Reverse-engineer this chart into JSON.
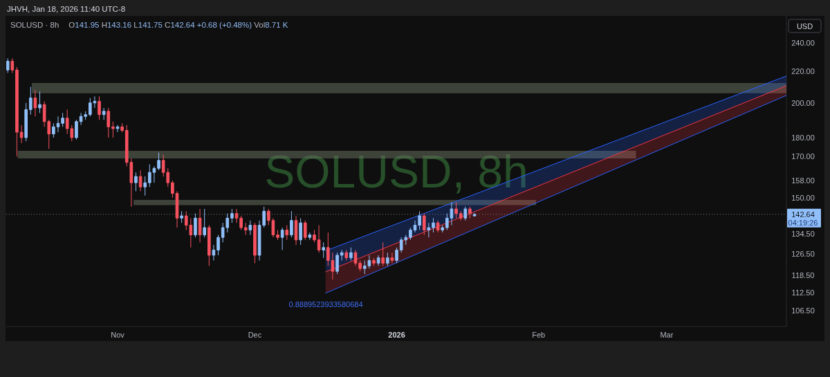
{
  "chart_data": {
    "type": "candlestick",
    "title": "SOLUSD · 8h",
    "subtitle": "O141.95 H143.16 L141.75 C142.64 +0.68 (+0.48%) Vol8.71 K",
    "ylabel": "USD",
    "annotations": [
      "JHVH, Jan 18, 2026 11:40 UTC-8",
      "SOLUSD, 8h",
      "0.8889523933580684",
      "04:19:26"
    ],
    "x": [
      "2025-10-08",
      "2025-10-09",
      "2025-10-10",
      "2025-10-11",
      "2025-10-12",
      "2025-10-13",
      "2025-10-14",
      "2025-10-15",
      "2025-10-16",
      "2025-10-17",
      "2025-10-18",
      "2025-10-19",
      "2025-10-20",
      "2025-10-21",
      "2025-10-22",
      "2025-10-23",
      "2025-10-24",
      "2025-10-25",
      "2025-10-26",
      "2025-10-27",
      "2025-10-28",
      "2025-10-29",
      "2025-10-30",
      "2025-10-31",
      "2025-11-01",
      "2025-11-02",
      "2025-11-03",
      "2025-11-04",
      "2025-11-05",
      "2025-11-06",
      "2025-11-07",
      "2025-11-08",
      "2025-11-09",
      "2025-11-10",
      "2025-11-11",
      "2025-11-12",
      "2025-11-13",
      "2025-11-14",
      "2025-11-15",
      "2025-11-16",
      "2025-11-17",
      "2025-11-18",
      "2025-11-19",
      "2025-11-20",
      "2025-11-21",
      "2025-11-22",
      "2025-11-23",
      "2025-11-24",
      "2025-11-25",
      "2025-11-26",
      "2025-11-27",
      "2025-11-28",
      "2025-11-29",
      "2025-11-30",
      "2025-12-01",
      "2025-12-02",
      "2025-12-03",
      "2025-12-04",
      "2025-12-05",
      "2025-12-06",
      "2025-12-07",
      "2025-12-08",
      "2025-12-09",
      "2025-12-10",
      "2025-12-11",
      "2025-12-12",
      "2025-12-13",
      "2025-12-14",
      "2025-12-15",
      "2025-12-16",
      "2025-12-17",
      "2025-12-18",
      "2025-12-19",
      "2025-12-20",
      "2025-12-21",
      "2025-12-22",
      "2025-12-23",
      "2025-12-24",
      "2025-12-25",
      "2025-12-26",
      "2025-12-27",
      "2025-12-28",
      "2025-12-29",
      "2025-12-30",
      "2025-12-31",
      "2026-01-01",
      "2026-01-02",
      "2026-01-03",
      "2026-01-04",
      "2026-01-05",
      "2026-01-06",
      "2026-01-07",
      "2026-01-08",
      "2026-01-09",
      "2026-01-10",
      "2026-01-11",
      "2026-01-12",
      "2026-01-13",
      "2026-01-14",
      "2026-01-15",
      "2026-01-16",
      "2026-01-17",
      "2026-01-18"
    ],
    "ohlc": [
      [
        221,
        229,
        219,
        227
      ],
      [
        227,
        229,
        219,
        221
      ],
      [
        221,
        223,
        170,
        183
      ],
      [
        183,
        187,
        177,
        180
      ],
      [
        180,
        200,
        178,
        196
      ],
      [
        196,
        210,
        193,
        203
      ],
      [
        203,
        208,
        192,
        197
      ],
      [
        197,
        207,
        194,
        199
      ],
      [
        199,
        201,
        186,
        189
      ],
      [
        189,
        190,
        174,
        182
      ],
      [
        182,
        188,
        180,
        186
      ],
      [
        186,
        192,
        183,
        188
      ],
      [
        188,
        194,
        186,
        191
      ],
      [
        191,
        196,
        182,
        185
      ],
      [
        185,
        187,
        178,
        180
      ],
      [
        180,
        190,
        179,
        189
      ],
      [
        189,
        194,
        187,
        192
      ],
      [
        192,
        195,
        190,
        193
      ],
      [
        193,
        203,
        192,
        200
      ],
      [
        200,
        204,
        197,
        201
      ],
      [
        201,
        204,
        190,
        193
      ],
      [
        193,
        197,
        190,
        195
      ],
      [
        195,
        197,
        180,
        186
      ],
      [
        186,
        189,
        180,
        185
      ],
      [
        185,
        187,
        183,
        186
      ],
      [
        186,
        188,
        183,
        184
      ],
      [
        184,
        187,
        165,
        167
      ],
      [
        167,
        169,
        146,
        157
      ],
      [
        157,
        162,
        153,
        160
      ],
      [
        160,
        163,
        153,
        155
      ],
      [
        155,
        160,
        151,
        157
      ],
      [
        157,
        166,
        155,
        162
      ],
      [
        162,
        165,
        157,
        164
      ],
      [
        164,
        172,
        163,
        168
      ],
      [
        168,
        171,
        160,
        162
      ],
      [
        162,
        164,
        155,
        157
      ],
      [
        157,
        158,
        150,
        152
      ],
      [
        152,
        153,
        137,
        141
      ],
      [
        141,
        144,
        139,
        142
      ],
      [
        142,
        144,
        136,
        138
      ],
      [
        138,
        141,
        129,
        134
      ],
      [
        134,
        143,
        133,
        141
      ],
      [
        141,
        145,
        131,
        134
      ],
      [
        134,
        145,
        133,
        137
      ],
      [
        137,
        138,
        122,
        126
      ],
      [
        126,
        130,
        124,
        128
      ],
      [
        128,
        134,
        126,
        133
      ],
      [
        133,
        139,
        131,
        137
      ],
      [
        137,
        143,
        135,
        141
      ],
      [
        141,
        145,
        139,
        143
      ],
      [
        143,
        145,
        139,
        141
      ],
      [
        141,
        142,
        136,
        137
      ],
      [
        137,
        139,
        134,
        136
      ],
      [
        136,
        140,
        134,
        138
      ],
      [
        138,
        139,
        123,
        126
      ],
      [
        126,
        140,
        124,
        138
      ],
      [
        138,
        146,
        137,
        144
      ],
      [
        144,
        145,
        138,
        140
      ],
      [
        140,
        141,
        133,
        134
      ],
      [
        134,
        136,
        132,
        133
      ],
      [
        133,
        137,
        128,
        136
      ],
      [
        136,
        138,
        132,
        134
      ],
      [
        134,
        144,
        133,
        140
      ],
      [
        140,
        142,
        130,
        132
      ],
      [
        132,
        141,
        130,
        139
      ],
      [
        139,
        140,
        132,
        133
      ],
      [
        133,
        135,
        132,
        134
      ],
      [
        134,
        136,
        131,
        132
      ],
      [
        132,
        138,
        127,
        128
      ],
      [
        128,
        131,
        125,
        129
      ],
      [
        129,
        135,
        122,
        124
      ],
      [
        124,
        127,
        117,
        120
      ],
      [
        120,
        127,
        119,
        126
      ],
      [
        126,
        128,
        124,
        127
      ],
      [
        127,
        128,
        124,
        125
      ],
      [
        125,
        129,
        124,
        127
      ],
      [
        127,
        128,
        122,
        123
      ],
      [
        123,
        124,
        120,
        121
      ],
      [
        121,
        124,
        119,
        122
      ],
      [
        122,
        126,
        121,
        124
      ],
      [
        124,
        125,
        122,
        123
      ],
      [
        123,
        126,
        122,
        125
      ],
      [
        125,
        131,
        122,
        123
      ],
      [
        123,
        127,
        122,
        125
      ],
      [
        125,
        127,
        123,
        124
      ],
      [
        124,
        129,
        123,
        128
      ],
      [
        128,
        133,
        127,
        132
      ],
      [
        132,
        134,
        130,
        133
      ],
      [
        133,
        137,
        132,
        136
      ],
      [
        136,
        140,
        135,
        138
      ],
      [
        138,
        144,
        136,
        142
      ],
      [
        142,
        143,
        134,
        136
      ],
      [
        136,
        139,
        133,
        137
      ],
      [
        137,
        141,
        135,
        139
      ],
      [
        139,
        140,
        135,
        136
      ],
      [
        136,
        138,
        135,
        137
      ],
      [
        137,
        143,
        136,
        141
      ],
      [
        141,
        148,
        138,
        145
      ],
      [
        145,
        148,
        141,
        143
      ],
      [
        143,
        144,
        140,
        141
      ],
      [
        141,
        146,
        140,
        145
      ],
      [
        145,
        146,
        141,
        143
      ],
      [
        141.95,
        143.16,
        141.75,
        142.64
      ]
    ],
    "colors": [
      "#90bff9",
      "#f7525f",
      "#f7525f",
      "#f7525f",
      "#90bff9",
      "#90bff9",
      "#f7525f",
      "#90bff9",
      "#f7525f",
      "#f7525f",
      "#90bff9",
      "#90bff9",
      "#90bff9",
      "#f7525f",
      "#f7525f",
      "#90bff9",
      "#90bff9",
      "#90bff9",
      "#90bff9",
      "#90bff9",
      "#f7525f",
      "#90bff9",
      "#f7525f",
      "#f7525f",
      "#90bff9",
      "#f7525f",
      "#f7525f",
      "#f7525f",
      "#90bff9",
      "#f7525f",
      "#90bff9",
      "#90bff9",
      "#90bff9",
      "#90bff9",
      "#f7525f",
      "#f7525f",
      "#f7525f",
      "#f7525f",
      "#90bff9",
      "#f7525f",
      "#f7525f",
      "#90bff9",
      "#f7525f",
      "#90bff9",
      "#f7525f",
      "#90bff9",
      "#90bff9",
      "#90bff9",
      "#90bff9",
      "#90bff9",
      "#f7525f",
      "#f7525f",
      "#f7525f",
      "#90bff9",
      "#f7525f",
      "#90bff9",
      "#90bff9",
      "#f7525f",
      "#f7525f",
      "#f7525f",
      "#90bff9",
      "#f7525f",
      "#90bff9",
      "#f7525f",
      "#90bff9",
      "#f7525f",
      "#90bff9",
      "#f7525f",
      "#f7525f",
      "#90bff9",
      "#f7525f",
      "#f7525f",
      "#90bff9",
      "#90bff9",
      "#f7525f",
      "#90bff9",
      "#f7525f",
      "#f7525f",
      "#90bff9",
      "#90bff9",
      "#f7525f",
      "#90bff9",
      "#f7525f",
      "#90bff9",
      "#f7525f",
      "#90bff9",
      "#90bff9",
      "#90bff9",
      "#90bff9",
      "#90bff9",
      "#90bff9",
      "#f7525f",
      "#90bff9",
      "#90bff9",
      "#f7525f",
      "#90bff9",
      "#90bff9",
      "#90bff9",
      "#f7525f",
      "#f7525f",
      "#90bff9",
      "#f7525f",
      "#90bff9"
    ],
    "series": [
      {
        "type": "line",
        "x": [
          "2025-10-13T06:00",
          "2026-03-27T04:00"
        ],
        "values": [
          null,
          null
        ],
        "lower": [
          206,
          206
        ],
        "upper": [
          212.5,
          212.5
        ],
        "color": "#66705f"
      },
      {
        "type": "line",
        "x": [
          "2025-10-10T05:00",
          "2026-02-22T07:00"
        ],
        "values": [
          null,
          null
        ],
        "lower": [
          169,
          169
        ],
        "upper": [
          173,
          173
        ],
        "color": "#66705f"
      },
      {
        "type": "line",
        "x": [
          "2025-11-04T12:00",
          "2026-01-31T11:00"
        ],
        "values": [
          null,
          null
        ],
        "lower": [
          146.7,
          146.7
        ],
        "upper": [
          149,
          149
        ],
        "color": "#66705f"
      },
      {
        "type": "line",
        "x": [
          "2025-12-16T11:00",
          "2026-03-27T04:00"
        ],
        "values": [
          127.7,
          217
        ],
        "lower": [
          119.8,
          210.7
        ],
        "upper": [
          127.7,
          217
        ],
        "color": "#2962ff"
      },
      {
        "type": "line",
        "x": [
          "2025-12-16T11:00",
          "2026-03-27T04:00"
        ],
        "values": [
          119.8,
          210.7
        ],
        "lower": [
          112.3,
          204.6
        ],
        "upper": [
          119.8,
          210.7
        ],
        "color": "#f23645"
      },
      {
        "type": "line",
        "x": [
          "2025-12-16T11:00",
          "2026-03-27T04:00"
        ],
        "values": [
          112.3,
          204.6
        ],
        "color": "#2962ff"
      }
    ],
    "xlim": [
      "2025-10-07T16:00",
      "2026-03-27T04:00"
    ],
    "xticks": [
      {
        "value": "2025-11-01",
        "label": "Nov"
      },
      {
        "value": "2025-12-01",
        "label": "Dec"
      },
      {
        "value": "2026-01-01",
        "label": "2026"
      },
      {
        "value": "2026-02-01",
        "label": "Feb"
      },
      {
        "value": "2026-03-01",
        "label": "Mar"
      }
    ],
    "ylim": [
      101.5,
      260.4
    ],
    "yticks": [
      {
        "value": 106.5,
        "label": "106.50"
      },
      {
        "value": 112.5,
        "label": "112.50"
      },
      {
        "value": 118.5,
        "label": "118.50"
      },
      {
        "value": 126.5,
        "label": "126.50"
      },
      {
        "value": 134.5,
        "label": "134.50"
      },
      {
        "value": 150,
        "label": "150.00"
      },
      {
        "value": 158,
        "label": "158.00"
      },
      {
        "value": 170,
        "label": "170.00"
      },
      {
        "value": 180,
        "label": "180.00"
      },
      {
        "value": 200,
        "label": "200.00"
      },
      {
        "value": 220,
        "label": "220.00"
      },
      {
        "value": 240,
        "label": "240.00"
      }
    ],
    "log": "y",
    "ref_lines": [
      {
        "axis": "y",
        "value": 142.64,
        "label": "142.64",
        "color": "#787b86",
        "line_style": "dotted"
      }
    ]
  }
}
